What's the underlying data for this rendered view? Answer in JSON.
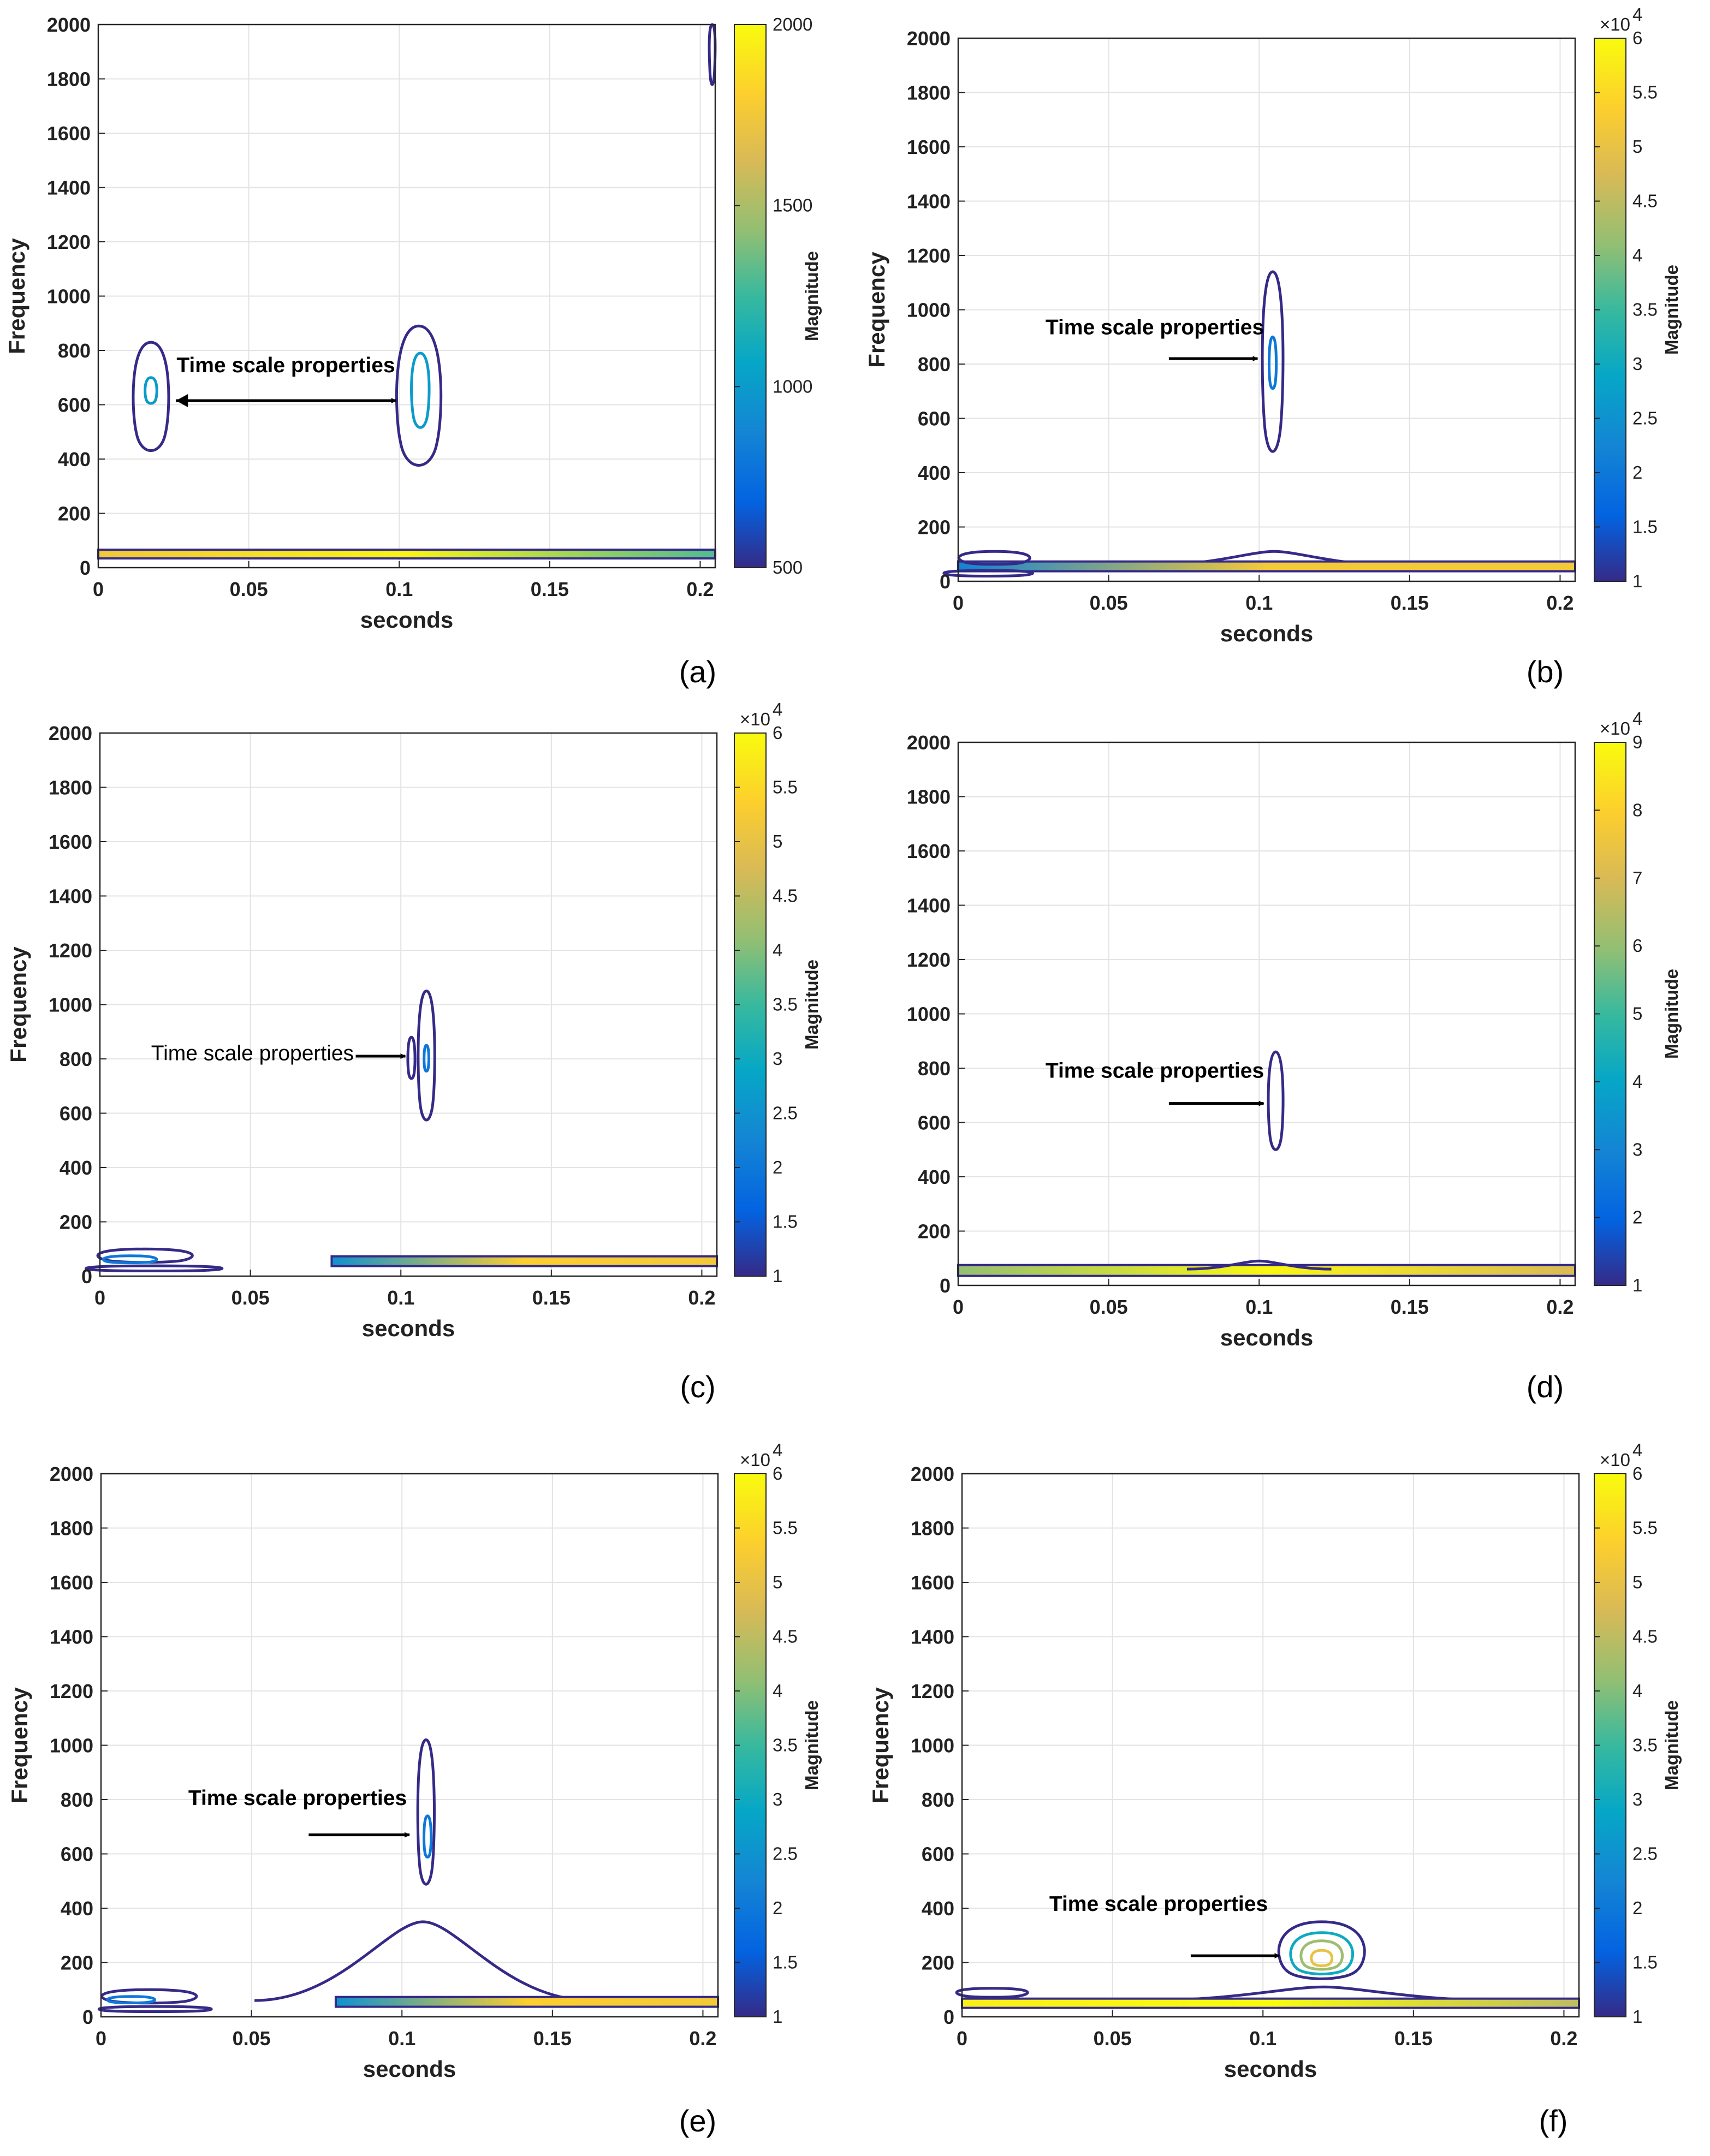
{
  "chart_data": [
    {
      "id": "a",
      "type": "contour",
      "panel_label": "(a)",
      "xlabel": "seconds",
      "ylabel": "Frequency",
      "xlim": [
        0,
        0.205
      ],
      "ylim": [
        0,
        2000
      ],
      "xticks": [
        0,
        0.05,
        0.1,
        0.15,
        0.2
      ],
      "xtick_labels": [
        "0",
        "0.05",
        "0.1",
        "0.15",
        "0.2"
      ],
      "yticks": [
        0,
        200,
        400,
        600,
        800,
        1000,
        1200,
        1400,
        1600,
        1800,
        2000
      ],
      "grid": true,
      "colorbar": {
        "label": "Magnitude",
        "min": 500,
        "max": 2000,
        "ticks": [
          500,
          1000,
          1500,
          2000
        ],
        "tick_labels": [
          "500",
          "1000",
          "1500",
          "2000"
        ],
        "exponent": ""
      },
      "annotation": {
        "text": "Time scale properties",
        "bold": true,
        "double_arrow": true
      },
      "contours": [
        {
          "kind": "blob",
          "x": 0.0175,
          "y": 620,
          "xw": 0.006,
          "yhi": 830,
          "ylo": 410,
          "level": 500
        },
        {
          "kind": "blob",
          "x": 0.0175,
          "y": 650,
          "xw": 0.002,
          "yhi": 700,
          "ylo": 600,
          "level": 1000
        },
        {
          "kind": "blob",
          "x": 0.1065,
          "y": 620,
          "xw": 0.0075,
          "yhi": 890,
          "ylo": 350,
          "level": 500
        },
        {
          "kind": "blob",
          "x": 0.107,
          "y": 660,
          "xw": 0.003,
          "yhi": 790,
          "ylo": 500,
          "level": 1000
        },
        {
          "kind": "blob",
          "x": 0.204,
          "y": 1950,
          "xw": 0.001,
          "yhi": 2000,
          "ylo": 1760,
          "level": 500
        },
        {
          "kind": "band",
          "x0": 0,
          "x1": 0.205,
          "y": 50,
          "h": 32,
          "left": 1750,
          "right": 1300
        }
      ]
    },
    {
      "id": "b",
      "type": "contour",
      "panel_label": "(b)",
      "xlabel": "seconds",
      "ylabel": "Frequency",
      "xlim": [
        0,
        0.205
      ],
      "ylim": [
        0,
        2000
      ],
      "xticks": [
        0,
        0.05,
        0.1,
        0.15,
        0.2
      ],
      "xtick_labels": [
        "0",
        "0.05",
        "0.1",
        "0.15",
        "0.2"
      ],
      "yticks": [
        0,
        200,
        400,
        600,
        800,
        1000,
        1200,
        1400,
        1600,
        1800,
        2000
      ],
      "grid": true,
      "colorbar": {
        "label": "Magnitude",
        "min": 1,
        "max": 6,
        "ticks": [
          1,
          1.5,
          2,
          2.5,
          3,
          3.5,
          4,
          4.5,
          5,
          5.5,
          6
        ],
        "tick_labels": [
          "1",
          "1.5",
          "2",
          "2.5",
          "3",
          "3.5",
          "4",
          "4.5",
          "5",
          "5.5",
          "6"
        ],
        "exponent": "×10",
        "exponent_power": "4"
      },
      "annotation": {
        "text": "Time scale properties",
        "bold": true,
        "double_arrow": false
      },
      "contours": [
        {
          "kind": "blob",
          "x": 0.1045,
          "y": 820,
          "xw": 0.0035,
          "yhi": 1140,
          "ylo": 440,
          "level": 1
        },
        {
          "kind": "blob",
          "x": 0.1045,
          "y": 800,
          "xw": 0.0012,
          "yhi": 900,
          "ylo": 700,
          "level": 2
        },
        {
          "kind": "bump",
          "x": 0.105,
          "w": 0.02,
          "y": 110,
          "level": 1
        },
        {
          "kind": "band",
          "x0": 0,
          "x1": 0.205,
          "y": 55,
          "h": 36,
          "left": 2.2,
          "right": 5.2
        },
        {
          "kind": "blob",
          "x": 0.012,
          "y": 85,
          "xw": 0.012,
          "yhi": 110,
          "ylo": 60,
          "level": 1
        },
        {
          "kind": "blob",
          "x": 0.01,
          "y": 30,
          "xw": 0.015,
          "yhi": 40,
          "ylo": 18,
          "level": 1
        }
      ]
    },
    {
      "id": "c",
      "type": "contour",
      "panel_label": "(c)",
      "xlabel": "seconds",
      "ylabel": "Frequency",
      "xlim": [
        0,
        0.205
      ],
      "ylim": [
        0,
        2000
      ],
      "xticks": [
        0,
        0.05,
        0.1,
        0.15,
        0.2
      ],
      "xtick_labels": [
        "0",
        "0.05",
        "0.1",
        "0.15",
        "0.2"
      ],
      "yticks": [
        0,
        200,
        400,
        600,
        800,
        1000,
        1200,
        1400,
        1600,
        1800,
        2000
      ],
      "grid": true,
      "colorbar": {
        "label": "Magnitude",
        "min": 1,
        "max": 6,
        "ticks": [
          1,
          1.5,
          2,
          2.5,
          3,
          3.5,
          4,
          4.5,
          5,
          5.5,
          6
        ],
        "tick_labels": [
          "1",
          "1.5",
          "2",
          "2.5",
          "3",
          "3.5",
          "4",
          "4.5",
          "5",
          "5.5",
          "6"
        ],
        "exponent": "×10",
        "exponent_power": "4"
      },
      "annotation": {
        "text": "Time scale properties",
        "bold": false,
        "double_arrow": false
      },
      "contours": [
        {
          "kind": "blob",
          "x": 0.1035,
          "y": 800,
          "xw": 0.0012,
          "yhi": 880,
          "ylo": 720,
          "level": 1
        },
        {
          "kind": "blob",
          "x": 0.1085,
          "y": 800,
          "xw": 0.0028,
          "yhi": 1050,
          "ylo": 550,
          "level": 1
        },
        {
          "kind": "blob",
          "x": 0.1085,
          "y": 800,
          "xw": 0.0008,
          "yhi": 850,
          "ylo": 750,
          "level": 2
        },
        {
          "kind": "band",
          "x0": 0.077,
          "x1": 0.205,
          "y": 55,
          "h": 36,
          "left": 2.5,
          "right": 5.2
        },
        {
          "kind": "blob",
          "x": 0.015,
          "y": 75,
          "xw": 0.016,
          "yhi": 100,
          "ylo": 48,
          "level": 1
        },
        {
          "kind": "blob",
          "x": 0.01,
          "y": 60,
          "xw": 0.009,
          "yhi": 75,
          "ylo": 48,
          "level": 2
        },
        {
          "kind": "blob",
          "x": 0.018,
          "y": 28,
          "xw": 0.023,
          "yhi": 38,
          "ylo": 18,
          "level": 1
        }
      ]
    },
    {
      "id": "d",
      "type": "contour",
      "panel_label": "(d)",
      "xlabel": "seconds",
      "ylabel": "",
      "xlim": [
        0,
        0.205
      ],
      "ylim": [
        0,
        2000
      ],
      "xticks": [
        0,
        0.05,
        0.1,
        0.15,
        0.2
      ],
      "xtick_labels": [
        "0",
        "0.05",
        "0.1",
        "0.15",
        "0.2"
      ],
      "yticks": [
        0,
        200,
        400,
        600,
        800,
        1000,
        1200,
        1400,
        1600,
        1800,
        2000
      ],
      "grid": true,
      "colorbar": {
        "label": "Magnitude",
        "min": 1,
        "max": 9,
        "ticks": [
          1,
          2,
          3,
          4,
          5,
          6,
          7,
          8,
          9
        ],
        "tick_labels": [
          "1",
          "2",
          "3",
          "4",
          "5",
          "6",
          "7",
          "8",
          "9"
        ],
        "exponent": "×10",
        "exponent_power": "4"
      },
      "annotation": {
        "text": "Time scale properties",
        "bold": true,
        "double_arrow": false
      },
      "contours": [
        {
          "kind": "blob",
          "x": 0.1055,
          "y": 680,
          "xw": 0.0025,
          "yhi": 860,
          "ylo": 480,
          "level": 1
        },
        {
          "kind": "band",
          "x0": 0,
          "x1": 0.205,
          "y": 55,
          "h": 40,
          "left": 6,
          "right": 7
        },
        {
          "kind": "bump",
          "x": 0.1,
          "w": 0.012,
          "y": 90,
          "level": 1
        }
      ]
    },
    {
      "id": "e",
      "type": "contour",
      "panel_label": "(e)",
      "xlabel": "seconds",
      "ylabel": "Frequency",
      "xlim": [
        0,
        0.205
      ],
      "ylim": [
        0,
        2000
      ],
      "xticks": [
        0,
        0.05,
        0.1,
        0.15,
        0.2
      ],
      "xtick_labels": [
        "0",
        "0.05",
        "0.1",
        "0.15",
        "0.2"
      ],
      "yticks": [
        0,
        200,
        400,
        600,
        800,
        1000,
        1200,
        1400,
        1600,
        1800,
        2000
      ],
      "grid": true,
      "colorbar": {
        "label": "Magnitude",
        "min": 1,
        "max": 6,
        "ticks": [
          1,
          1.5,
          2,
          2.5,
          3,
          3.5,
          4,
          4.5,
          5,
          5.5,
          6
        ],
        "tick_labels": [
          "1",
          "1.5",
          "2",
          "2.5",
          "3",
          "3.5",
          "4",
          "4.5",
          "5",
          "5.5",
          "6"
        ],
        "exponent": "×10",
        "exponent_power": "4"
      },
      "annotation": {
        "text": "Time scale properties",
        "bold": true,
        "double_arrow": false
      },
      "contours": [
        {
          "kind": "blob",
          "x": 0.108,
          "y": 740,
          "xw": 0.0028,
          "yhi": 1020,
          "ylo": 460,
          "level": 1
        },
        {
          "kind": "blob",
          "x": 0.1085,
          "y": 660,
          "xw": 0.0012,
          "yhi": 740,
          "ylo": 580,
          "level": 2
        },
        {
          "kind": "bump",
          "x": 0.107,
          "w": 0.028,
          "y": 350,
          "level": 1
        },
        {
          "kind": "band",
          "x0": 0.078,
          "x1": 0.205,
          "y": 55,
          "h": 36,
          "left": 2.5,
          "right": 5.2
        },
        {
          "kind": "blob",
          "x": 0.016,
          "y": 75,
          "xw": 0.016,
          "yhi": 100,
          "ylo": 48,
          "level": 1
        },
        {
          "kind": "blob",
          "x": 0.01,
          "y": 62,
          "xw": 0.008,
          "yhi": 75,
          "ylo": 50,
          "level": 2
        },
        {
          "kind": "blob",
          "x": 0.018,
          "y": 28,
          "xw": 0.019,
          "yhi": 38,
          "ylo": 18,
          "level": 1
        }
      ]
    },
    {
      "id": "f",
      "type": "contour",
      "panel_label": "(f)",
      "xlabel": "seconds",
      "ylabel": "Frequency",
      "xlim": [
        0,
        0.205
      ],
      "ylim": [
        0,
        2000
      ],
      "xticks": [
        0,
        0.05,
        0.1,
        0.15,
        0.2
      ],
      "xtick_labels": [
        "0",
        "0.05",
        "0.1",
        "0.15",
        "0.2"
      ],
      "yticks": [
        0,
        200,
        400,
        600,
        800,
        1000,
        1200,
        1400,
        1600,
        1800,
        2000
      ],
      "grid": true,
      "colorbar": {
        "label": "Magnitude",
        "min": 1,
        "max": 6,
        "ticks": [
          1,
          1.5,
          2,
          2.5,
          3,
          3.5,
          4,
          4.5,
          5,
          5.5,
          6
        ],
        "tick_labels": [
          "1",
          "1.5",
          "2",
          "2.5",
          "3",
          "3.5",
          "4",
          "4.5",
          "5",
          "5.5",
          "6"
        ],
        "exponent": "×10",
        "exponent_power": "4"
      },
      "annotation": {
        "text": "Time scale properties",
        "bold": true,
        "double_arrow": false
      },
      "contours": [
        {
          "kind": "blob",
          "x": 0.1195,
          "y": 230,
          "xw": 0.0145,
          "yhi": 350,
          "ylo": 130,
          "level": 1
        },
        {
          "kind": "blob",
          "x": 0.1195,
          "y": 225,
          "xw": 0.0105,
          "yhi": 310,
          "ylo": 150,
          "level": 3
        },
        {
          "kind": "blob",
          "x": 0.1195,
          "y": 220,
          "xw": 0.007,
          "yhi": 280,
          "ylo": 170,
          "level": 4.2
        },
        {
          "kind": "blob",
          "x": 0.1195,
          "y": 215,
          "xw": 0.0035,
          "yhi": 245,
          "ylo": 185,
          "level": 5
        },
        {
          "kind": "bump",
          "x": 0.12,
          "w": 0.03,
          "y": 110,
          "level": 1
        },
        {
          "kind": "band",
          "x0": 0,
          "x1": 0.205,
          "y": 50,
          "h": 34,
          "left": 5.8,
          "right": 4.5
        },
        {
          "kind": "blob",
          "x": 0.01,
          "y": 90,
          "xw": 0.012,
          "yhi": 105,
          "ylo": 70,
          "level": 1
        }
      ]
    }
  ]
}
